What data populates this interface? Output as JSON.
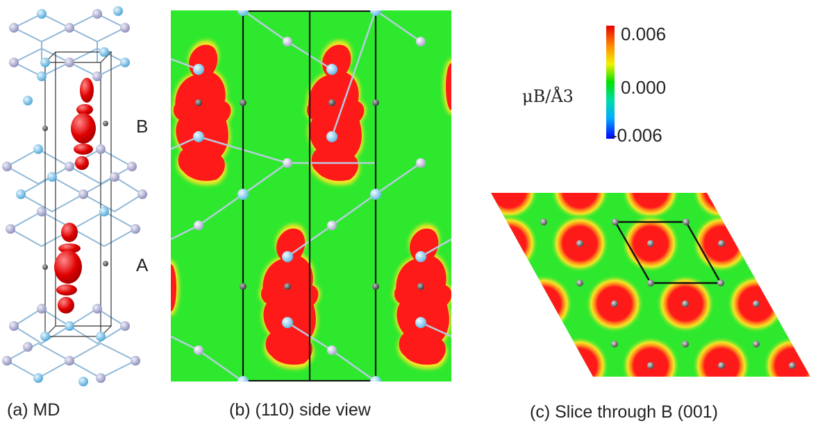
{
  "figure": {
    "panels": [
      {
        "id": "a",
        "caption": "(a) MD",
        "labels": [
          "B",
          "A"
        ]
      },
      {
        "id": "b",
        "caption": "(b) (110) side view"
      },
      {
        "id": "c",
        "caption": "(c) Slice through B (001)"
      }
    ],
    "colorbar": {
      "unit": "μB/Å3",
      "ticks": [
        "0.006",
        "0.000",
        "-0.006"
      ],
      "colors": [
        "#e60000",
        "#ff8c00",
        "#f2f200",
        "#00e000",
        "#00ddaa",
        "#00aaff",
        "#0000ff"
      ]
    },
    "colors": {
      "field_bg": "#2ee82e",
      "density": "#ff1a1a",
      "density_edge": "#f5e628",
      "atom_blue": "#8fd0f0",
      "atom_lavender": "#b7b7d6",
      "atom_gray": "#555555"
    }
  }
}
